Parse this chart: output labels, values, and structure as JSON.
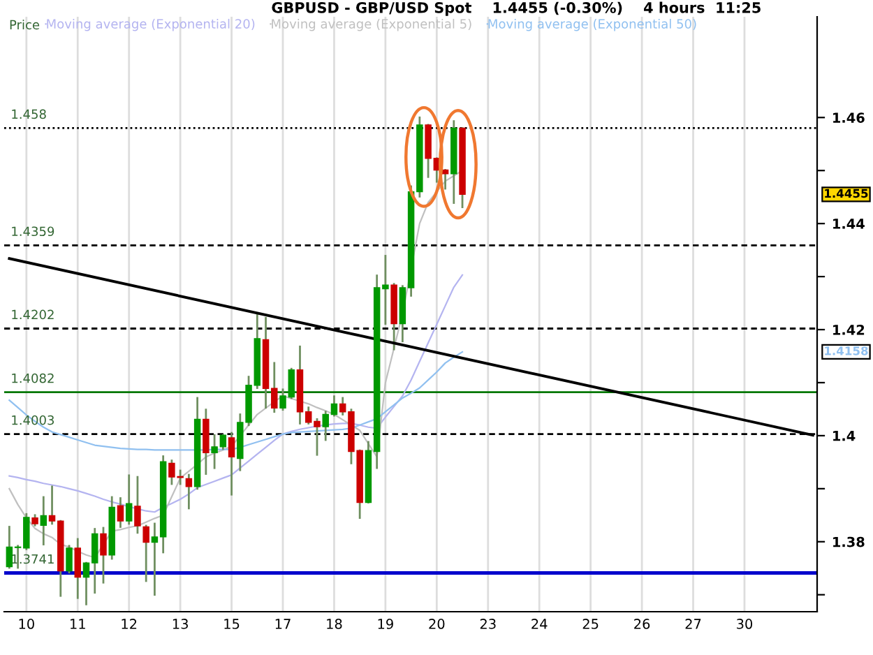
{
  "chart_data": {
    "type": "candlestick",
    "title": "GBPUSD - GBP/USD Spot    1.4455 (-0.30%)    4 hours  11:25",
    "ylabel": "Price",
    "categories": [
      null,
      null,
      "10",
      null,
      null,
      null,
      null,
      null,
      "11",
      null,
      null,
      null,
      null,
      null,
      "12",
      null,
      null,
      null,
      null,
      null,
      "13",
      null,
      null,
      null,
      null,
      null,
      "15",
      null,
      null,
      null,
      null,
      null,
      "17",
      null,
      null,
      null,
      null,
      null,
      "18",
      null,
      null,
      null,
      null,
      null,
      "19",
      null,
      null,
      null,
      null,
      null,
      "20",
      null,
      null,
      null,
      null,
      null,
      "23",
      null,
      null,
      null,
      null,
      null,
      "24",
      null,
      null,
      null,
      null,
      null,
      "25",
      null,
      null,
      null,
      null,
      null,
      "26",
      null,
      null,
      null,
      null,
      null,
      "27",
      null,
      null,
      null,
      null,
      null,
      "30",
      null,
      null,
      null,
      null,
      null,
      null,
      null,
      null
    ],
    "ohlc": [
      [
        1.3753,
        1.3828,
        1.3751,
        1.379
      ],
      [
        1.3789,
        1.3792,
        1.3751,
        1.379
      ],
      [
        1.3788,
        1.3852,
        1.3786,
        1.3846
      ],
      [
        1.3845,
        1.385,
        1.3831,
        1.3834
      ],
      [
        1.3831,
        1.3884,
        1.3795,
        1.3849
      ],
      [
        1.3849,
        1.3904,
        1.3834,
        1.3839
      ],
      [
        1.3839,
        1.3839,
        1.3698,
        1.3745
      ],
      [
        1.3745,
        1.3792,
        1.3742,
        1.3788
      ],
      [
        1.3788,
        1.3805,
        1.3694,
        1.3733
      ],
      [
        1.3733,
        1.376,
        1.3682,
        1.376
      ],
      [
        1.376,
        1.3824,
        1.3704,
        1.3815
      ],
      [
        1.3815,
        1.3826,
        1.3723,
        1.3775
      ],
      [
        1.3775,
        1.3884,
        1.3768,
        1.3865
      ],
      [
        1.3868,
        1.3882,
        1.3828,
        1.3839
      ],
      [
        1.3839,
        1.3925,
        1.3834,
        1.3872
      ],
      [
        1.3867,
        1.3922,
        1.3817,
        1.383
      ],
      [
        1.3828,
        1.383,
        1.3726,
        1.3799
      ],
      [
        1.3799,
        1.3834,
        1.37,
        1.3809
      ],
      [
        1.3809,
        1.3961,
        1.378,
        1.3951
      ],
      [
        1.3948,
        1.3953,
        1.3909,
        1.3922
      ],
      [
        1.3923,
        1.3934,
        1.3909,
        1.3921
      ],
      [
        1.3919,
        1.3926,
        1.3863,
        1.3904
      ],
      [
        1.3904,
        1.4071,
        1.39,
        1.4031
      ],
      [
        1.4031,
        1.4049,
        1.3928,
        1.3968
      ],
      [
        1.3968,
        1.4001,
        1.3939,
        1.3979
      ],
      [
        1.3979,
        1.4001,
        1.3975,
        1.4001
      ],
      [
        1.3996,
        1.4005,
        1.3889,
        1.396
      ],
      [
        1.3957,
        1.404,
        1.3935,
        1.4025
      ],
      [
        1.4025,
        1.4111,
        1.402,
        1.4095
      ],
      [
        1.4095,
        1.4227,
        1.409,
        1.4183
      ],
      [
        1.4181,
        1.4222,
        1.4053,
        1.4089
      ],
      [
        1.4089,
        1.4137,
        1.4045,
        1.4052
      ],
      [
        1.4052,
        1.4087,
        1.4049,
        1.4075
      ],
      [
        1.4073,
        1.4126,
        1.4071,
        1.4124
      ],
      [
        1.4124,
        1.4168,
        1.4023,
        1.4045
      ],
      [
        1.4045,
        1.4053,
        1.4023,
        1.4025
      ],
      [
        1.4027,
        1.4031,
        1.3964,
        1.4017
      ],
      [
        1.4017,
        1.4045,
        1.3992,
        1.404
      ],
      [
        1.404,
        1.4074,
        1.4038,
        1.406
      ],
      [
        1.406,
        1.4071,
        1.404,
        1.4045
      ],
      [
        1.4045,
        1.4049,
        1.3948,
        1.397
      ],
      [
        1.3972,
        1.3972,
        1.3845,
        1.3874
      ],
      [
        1.3874,
        1.3988,
        1.3874,
        1.3972
      ],
      [
        1.397,
        1.4302,
        1.3939,
        1.4279
      ],
      [
        1.4277,
        1.4339,
        1.4211,
        1.4284
      ],
      [
        1.4284,
        1.4286,
        1.4163,
        1.4211
      ],
      [
        1.4211,
        1.4282,
        1.4178,
        1.4279
      ],
      [
        1.4279,
        1.447,
        1.4264,
        1.446
      ],
      [
        1.446,
        1.46,
        1.4451,
        1.4586
      ],
      [
        1.4586,
        1.4586,
        1.4488,
        1.4523
      ],
      [
        1.4523,
        1.4523,
        1.4479,
        1.4501
      ],
      [
        1.4501,
        1.4501,
        1.4466,
        1.4494
      ],
      [
        1.4494,
        1.4593,
        1.4439,
        1.458
      ],
      [
        1.458,
        1.458,
        1.4431,
        1.4455
      ],
      null,
      null,
      null,
      null,
      null,
      null,
      null,
      null,
      null,
      null,
      null,
      null,
      null,
      null,
      null,
      null,
      null,
      null,
      null,
      null,
      null,
      null,
      null,
      null,
      null,
      null,
      null,
      null,
      null,
      null,
      null,
      null,
      null,
      null,
      null,
      null,
      null,
      null,
      null,
      null,
      null
    ],
    "colors": [
      "#009900",
      "#009900",
      "#009900",
      "#cc0000",
      "#009900",
      "#cc0000",
      "#cc0000",
      "#009900",
      "#cc0000",
      "#009900",
      "#009900",
      "#cc0000",
      "#009900",
      "#cc0000",
      "#009900",
      "#cc0000",
      "#cc0000",
      "#009900",
      "#009900",
      "#cc0000",
      "#cc0000",
      "#cc0000",
      "#009900",
      "#cc0000",
      "#009900",
      "#009900",
      "#cc0000",
      "#009900",
      "#009900",
      "#009900",
      "#cc0000",
      "#cc0000",
      "#009900",
      "#009900",
      "#cc0000",
      "#cc0000",
      "#cc0000",
      "#009900",
      "#009900",
      "#cc0000",
      "#cc0000",
      "#cc0000",
      "#009900",
      "#009900",
      "#009900",
      "#cc0000",
      "#009900",
      "#009900",
      "#009900",
      "#cc0000",
      "#cc0000",
      "#cc0000",
      "#009900",
      "#cc0000",
      null,
      null,
      null,
      null,
      null,
      null,
      null,
      null,
      null,
      null,
      null,
      null,
      null,
      null,
      null,
      null,
      null,
      null,
      null,
      null,
      null,
      null,
      null,
      null,
      null,
      null,
      null,
      null,
      null,
      null,
      null,
      null,
      null,
      null,
      null,
      null,
      null,
      null,
      null,
      null,
      null
    ],
    "series": [
      {
        "type": "line",
        "name": "Moving average (Exponential 20)",
        "color": "#b4b4f0",
        "values": [
          1.3924,
          1.3921,
          1.3917,
          1.3914,
          1.391,
          1.3907,
          1.3904,
          1.39,
          1.3896,
          1.3891,
          1.3886,
          1.388,
          1.3875,
          1.3871,
          1.3866,
          1.3862,
          1.3858,
          1.3856,
          1.3865,
          1.3872,
          1.388,
          1.389,
          1.3902,
          1.3908,
          1.3914,
          1.392,
          1.3926,
          1.3939,
          1.3952,
          1.3965,
          1.3978,
          1.3991,
          1.4003,
          1.4008,
          1.4012,
          1.4015,
          1.4018,
          1.402,
          1.4022,
          1.4023,
          1.4023,
          1.402,
          1.4016,
          1.4014,
          1.4035,
          1.4055,
          1.4075,
          1.4105,
          1.414,
          1.4175,
          1.421,
          1.4245,
          1.428,
          1.4303,
          null,
          null,
          null,
          null,
          null,
          null,
          null,
          null,
          null,
          null,
          null,
          null,
          null,
          null,
          null,
          null,
          null,
          null,
          null,
          null,
          null,
          null,
          null,
          null,
          null,
          null,
          null,
          null,
          null,
          null,
          null,
          null,
          null,
          null,
          null,
          null,
          null,
          null,
          null,
          null,
          null
        ]
      },
      {
        "type": "line",
        "name": "Moving average (Exponential 5)",
        "color": "#c0c0c0",
        "values": [
          1.39,
          1.387,
          1.3845,
          1.3825,
          1.3815,
          1.3808,
          1.3795,
          1.379,
          1.3782,
          1.3775,
          1.377,
          1.3795,
          1.382,
          1.3823,
          1.3827,
          1.383,
          1.3837,
          1.3844,
          1.385,
          1.3885,
          1.392,
          1.3933,
          1.3946,
          1.396,
          1.3967,
          1.3973,
          1.398,
          1.4,
          1.402,
          1.404,
          1.4052,
          1.4064,
          1.4075,
          1.407,
          1.4065,
          1.406,
          1.4053,
          1.4047,
          1.404,
          1.403,
          1.402,
          1.401,
          1.3985,
          1.396,
          1.41,
          1.4165,
          1.423,
          1.4315,
          1.44,
          1.444,
          1.446,
          1.448,
          1.449,
          1.45,
          null,
          null,
          null,
          null,
          null,
          null,
          null,
          null,
          null,
          null,
          null,
          null,
          null,
          null,
          null,
          null,
          null,
          null,
          null,
          null,
          null,
          null,
          null,
          null,
          null,
          null,
          null,
          null,
          null,
          null,
          null,
          null,
          null,
          null,
          null,
          null,
          null,
          null,
          null,
          null,
          null
        ]
      },
      {
        "type": "line",
        "name": "Moving average (Exponential 50)",
        "color": "#90c0f0",
        "values": [
          1.4067,
          1.4053,
          1.4039,
          1.4027,
          1.4016,
          1.4007,
          1.4002,
          1.3997,
          1.3992,
          1.3987,
          1.3982,
          1.398,
          1.3978,
          1.3976,
          1.3975,
          1.3974,
          1.3974,
          1.3973,
          1.3973,
          1.3973,
          1.3973,
          1.3973,
          1.3973,
          1.3973,
          1.3974,
          1.3974,
          1.3974,
          1.3978,
          1.3983,
          1.3988,
          1.3993,
          1.3998,
          1.4003,
          1.4006,
          1.4007,
          1.4008,
          1.4009,
          1.401,
          1.4011,
          1.4012,
          1.4014,
          1.402,
          1.4026,
          1.4032,
          1.4045,
          1.4058,
          1.4071,
          1.408,
          1.409,
          1.4105,
          1.412,
          1.4137,
          1.4148,
          1.4158,
          null,
          null,
          null,
          null,
          null,
          null,
          null,
          null,
          null,
          null,
          null,
          null,
          null,
          null,
          null,
          null,
          null,
          null,
          null,
          null,
          null,
          null,
          null,
          null,
          null,
          null,
          null,
          null,
          null,
          null,
          null,
          null,
          null,
          null,
          null,
          null,
          null,
          null,
          null,
          null,
          null
        ]
      },
      {
        "type": "line",
        "color": "#000000",
        "values": [
          1.4334,
          null,
          null,
          null,
          null,
          null,
          null,
          null,
          null,
          null,
          null,
          null,
          null,
          null,
          null,
          null,
          null,
          null,
          null,
          null,
          null,
          null,
          null,
          null,
          null,
          null,
          null,
          null,
          null,
          null,
          null,
          null,
          null,
          null,
          null,
          null,
          null,
          null,
          null,
          null,
          null,
          null,
          null,
          null,
          null,
          null,
          null,
          null,
          null,
          null,
          null,
          null,
          null,
          null,
          null,
          null,
          null,
          null,
          null,
          null,
          null,
          null,
          null,
          null,
          null,
          null,
          null,
          null,
          null,
          null,
          null,
          null,
          null,
          null,
          null,
          null,
          null,
          null,
          null,
          null,
          null,
          null,
          null,
          null,
          null,
          null,
          null,
          null,
          null,
          null,
          null,
          null,
          null,
          null,
          1.4001
        ]
      }
    ],
    "ref_lines": [
      {
        "axis": "y",
        "value": 1.458,
        "label": "1.458",
        "color": "#000000",
        "line_style": "dotted"
      },
      {
        "axis": "y",
        "value": 1.4359,
        "label": "1.4359",
        "color": "#000000",
        "line_style": "dashed"
      },
      {
        "axis": "y",
        "value": 1.4202,
        "label": "1.4202",
        "color": "#000000",
        "line_style": "dashed"
      },
      {
        "axis": "y",
        "value": 1.4082,
        "label": "1.4082",
        "color": "#007700",
        "line_style": "solid"
      },
      {
        "axis": "y",
        "value": 1.4003,
        "label": "1.4003",
        "color": "#000000",
        "line_style": "dashed"
      },
      {
        "axis": "y",
        "value": 1.3741,
        "label": "1.3741",
        "color": "#0000cc",
        "line_style": "solid"
      }
    ],
    "annotations": [
      "1.4455",
      "1.4158"
    ],
    "ylim": [
      1.3668,
      1.479
    ],
    "yticks": [
      {
        "value": 1.37,
        "label": null
      },
      1.38,
      {
        "value": 1.39,
        "label": null
      },
      1.4,
      {
        "value": 1.41,
        "label": null
      },
      1.42,
      {
        "value": 1.43,
        "label": null
      },
      1.44,
      {
        "value": 1.45,
        "label": null
      },
      1.46
    ],
    "grid": "x",
    "legend": "top left"
  }
}
